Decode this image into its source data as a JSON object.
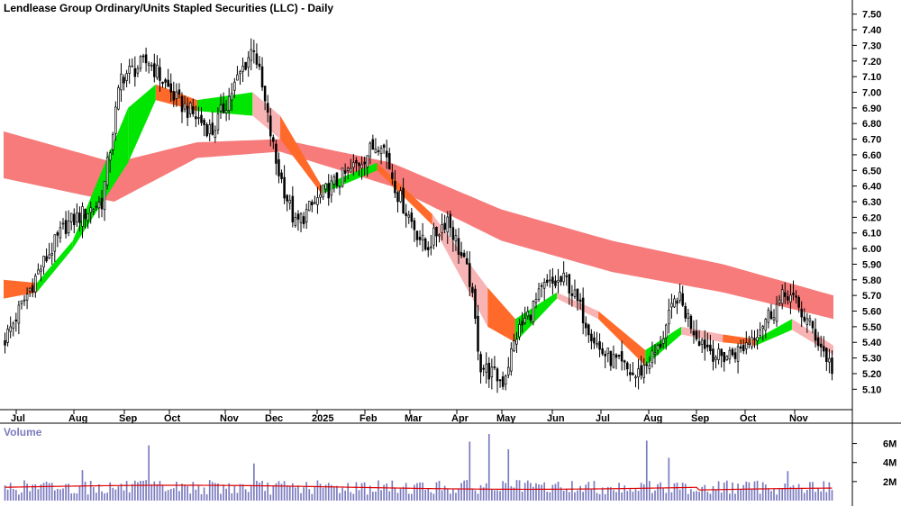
{
  "chart_data": [
    {
      "type": "candlestick",
      "title": "Lendlease Group Ordinary/Units Stapled Securities (LLC) - Daily",
      "y_tick_labels": [
        "7.50",
        "7.40",
        "7.30",
        "7.20",
        "7.10",
        "7.00",
        "6.90",
        "6.80",
        "6.70",
        "6.60",
        "6.50",
        "6.40",
        "6.30",
        "6.20",
        "6.10",
        "6.00",
        "5.90",
        "5.80",
        "5.70",
        "5.60",
        "5.50",
        "5.40",
        "5.30",
        "5.20",
        "5.10"
      ],
      "ylim": [
        5.05,
        7.55
      ],
      "x_tick_labels": [
        "Jul",
        "Aug",
        "Sep",
        "Oct",
        "Nov",
        "Dec",
        "2025",
        "Feb",
        "Mar",
        "Apr",
        "May",
        "Jun",
        "Jul",
        "Aug",
        "Sep",
        "Oct",
        "Nov"
      ],
      "grid": false,
      "colors": {
        "up": "#ffffff",
        "down": "#000000",
        "candle_outline": "#000000",
        "long_band": "#f77b7b",
        "short_band_bull": "#00e600",
        "short_band_bear": "#ff6a2b",
        "short_band_weak": "#f8b4b4"
      },
      "price_path_anchors": [
        {
          "t": 0,
          "close": 5.42
        },
        {
          "t": 12,
          "close": 5.85
        },
        {
          "t": 22,
          "close": 6.15
        },
        {
          "t": 35,
          "close": 6.3
        },
        {
          "t": 42,
          "close": 7.1
        },
        {
          "t": 52,
          "close": 7.2
        },
        {
          "t": 62,
          "close": 6.95
        },
        {
          "t": 75,
          "close": 6.75
        },
        {
          "t": 90,
          "close": 7.3
        },
        {
          "t": 98,
          "close": 6.55
        },
        {
          "t": 105,
          "close": 6.15
        },
        {
          "t": 115,
          "close": 6.35
        },
        {
          "t": 125,
          "close": 6.5
        },
        {
          "t": 136,
          "close": 6.7
        },
        {
          "t": 142,
          "close": 6.35
        },
        {
          "t": 152,
          "close": 6.0
        },
        {
          "t": 160,
          "close": 6.2
        },
        {
          "t": 168,
          "close": 5.8
        },
        {
          "t": 172,
          "close": 5.25
        },
        {
          "t": 180,
          "close": 5.15
        },
        {
          "t": 185,
          "close": 5.45
        },
        {
          "t": 195,
          "close": 5.75
        },
        {
          "t": 203,
          "close": 5.8
        },
        {
          "t": 215,
          "close": 5.35
        },
        {
          "t": 228,
          "close": 5.18
        },
        {
          "t": 236,
          "close": 5.35
        },
        {
          "t": 243,
          "close": 5.7
        },
        {
          "t": 250,
          "close": 5.45
        },
        {
          "t": 258,
          "close": 5.3
        },
        {
          "t": 266,
          "close": 5.35
        },
        {
          "t": 275,
          "close": 5.55
        },
        {
          "t": 283,
          "close": 5.72
        },
        {
          "t": 292,
          "close": 5.48
        },
        {
          "t": 300,
          "close": 5.2
        }
      ],
      "long_band_anchors": [
        {
          "t": 0,
          "upper": 6.75,
          "lower": 6.45
        },
        {
          "t": 40,
          "upper": 6.55,
          "lower": 6.3
        },
        {
          "t": 70,
          "upper": 6.68,
          "lower": 6.58
        },
        {
          "t": 100,
          "upper": 6.7,
          "lower": 6.62
        },
        {
          "t": 140,
          "upper": 6.55,
          "lower": 6.4
        },
        {
          "t": 180,
          "upper": 6.25,
          "lower": 6.05
        },
        {
          "t": 220,
          "upper": 6.05,
          "lower": 5.85
        },
        {
          "t": 260,
          "upper": 5.9,
          "lower": 5.72
        },
        {
          "t": 300,
          "upper": 5.7,
          "lower": 5.55
        }
      ],
      "short_band_anchors": [
        {
          "t": 0,
          "upper": 5.8,
          "lower": 5.68,
          "tone": "weak"
        },
        {
          "t": 12,
          "upper": 5.78,
          "lower": 5.72,
          "tone": "bear"
        },
        {
          "t": 25,
          "upper": 6.05,
          "lower": 6.0,
          "tone": "bull"
        },
        {
          "t": 45,
          "upper": 6.9,
          "lower": 6.55,
          "tone": "bull"
        },
        {
          "t": 55,
          "upper": 7.05,
          "lower": 6.95,
          "tone": "bull"
        },
        {
          "t": 70,
          "upper": 6.95,
          "lower": 6.88,
          "tone": "bear"
        },
        {
          "t": 90,
          "upper": 7.0,
          "lower": 6.85,
          "tone": "bull"
        },
        {
          "t": 100,
          "upper": 6.85,
          "lower": 6.7,
          "tone": "weak"
        },
        {
          "t": 115,
          "upper": 6.4,
          "lower": 6.35,
          "tone": "bear"
        },
        {
          "t": 135,
          "upper": 6.55,
          "lower": 6.5,
          "tone": "bull"
        },
        {
          "t": 155,
          "upper": 6.22,
          "lower": 6.15,
          "tone": "bear"
        },
        {
          "t": 175,
          "upper": 5.75,
          "lower": 5.5,
          "tone": "weak"
        },
        {
          "t": 185,
          "upper": 5.55,
          "lower": 5.4,
          "tone": "bear"
        },
        {
          "t": 200,
          "upper": 5.72,
          "lower": 5.68,
          "tone": "bull"
        },
        {
          "t": 215,
          "upper": 5.6,
          "lower": 5.55,
          "tone": "weak"
        },
        {
          "t": 232,
          "upper": 5.35,
          "lower": 5.25,
          "tone": "bear"
        },
        {
          "t": 245,
          "upper": 5.5,
          "lower": 5.45,
          "tone": "bull"
        },
        {
          "t": 260,
          "upper": 5.45,
          "lower": 5.4,
          "tone": "weak"
        },
        {
          "t": 272,
          "upper": 5.42,
          "lower": 5.38,
          "tone": "bear"
        },
        {
          "t": 285,
          "upper": 5.55,
          "lower": 5.48,
          "tone": "bull"
        },
        {
          "t": 300,
          "upper": 5.38,
          "lower": 5.32,
          "tone": "weak"
        }
      ]
    },
    {
      "type": "bar",
      "title": "Volume",
      "y_tick_labels": [
        "6M",
        "4M",
        "2M"
      ],
      "ylim": [
        0,
        7000000
      ],
      "colors": {
        "bars": "#7b7bc0",
        "average_line": "#e00000"
      },
      "average_volume": 1400000,
      "spike_volumes": [
        {
          "t": 28,
          "v": 3200000
        },
        {
          "t": 52,
          "v": 5800000
        },
        {
          "t": 90,
          "v": 3900000
        },
        {
          "t": 168,
          "v": 6200000
        },
        {
          "t": 175,
          "v": 7000000
        },
        {
          "t": 182,
          "v": 5400000
        },
        {
          "t": 232,
          "v": 6300000
        },
        {
          "t": 240,
          "v": 4500000
        },
        {
          "t": 283,
          "v": 3100000
        }
      ]
    }
  ]
}
